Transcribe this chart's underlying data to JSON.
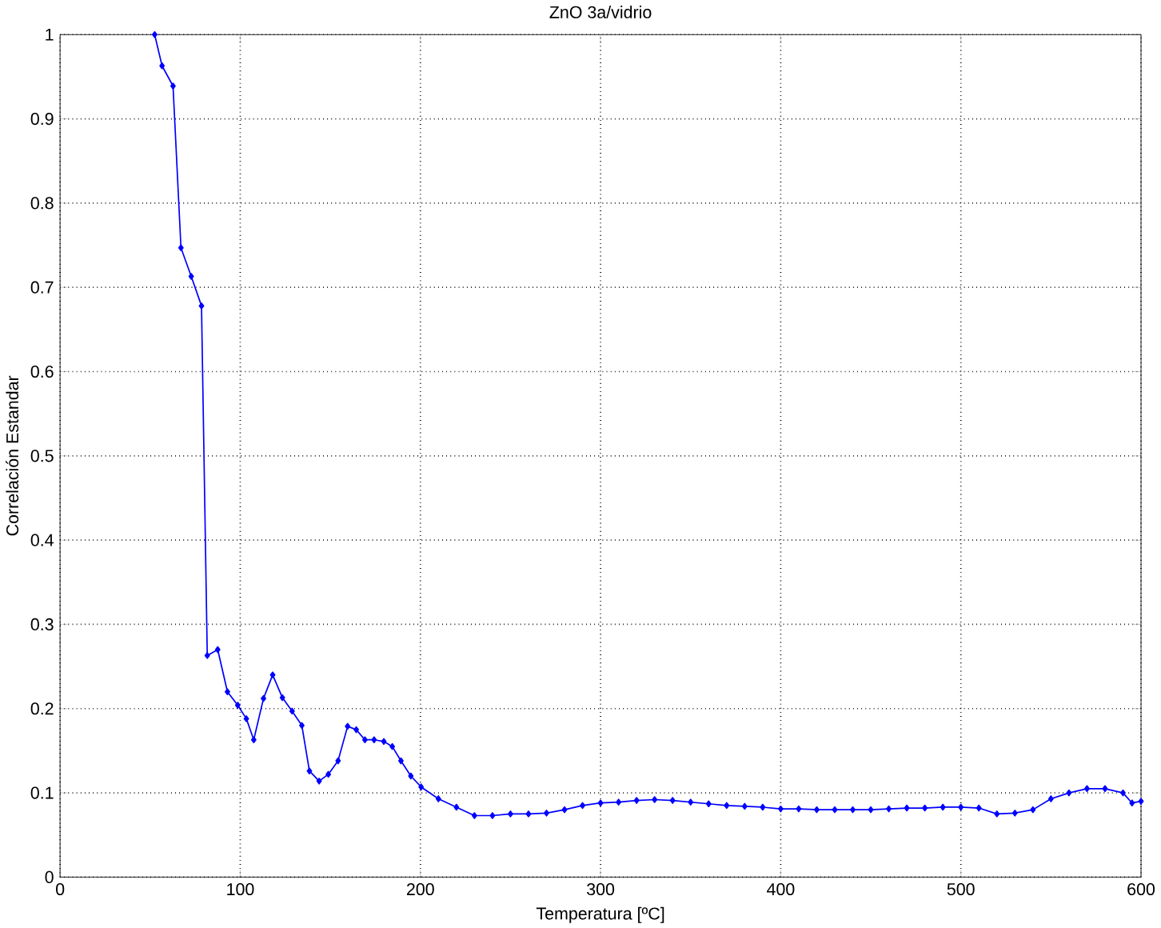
{
  "chart_data": {
    "type": "line",
    "title": "ZnO 3a/vidrio",
    "xlabel": "Temperatura [ºC]",
    "ylabel": "Correlación Estandar",
    "xlim": [
      0,
      600
    ],
    "ylim": [
      0,
      1
    ],
    "xticks": [
      0,
      100,
      200,
      300,
      400,
      500,
      600
    ],
    "yticks": [
      0,
      0.1,
      0.2,
      0.3,
      0.4,
      0.5,
      0.6,
      0.7,
      0.8,
      0.9,
      1
    ],
    "grid": true,
    "marker": "diamond",
    "line_style": "solid",
    "series": [
      {
        "color": "#0000ff",
        "x": [
          52.5,
          56.6,
          62.7,
          67.1,
          72.8,
          78.5,
          81.7,
          87.5,
          92.9,
          98.6,
          103.4,
          107.5,
          112.9,
          118,
          123.4,
          128.8,
          134.2,
          138.4,
          143.8,
          148.9,
          154.3,
          159.6,
          164.4,
          169.2,
          174.3,
          179.7,
          184.4,
          189.2,
          194.7,
          200.4,
          210,
          220,
          230,
          240,
          250,
          260,
          270,
          280,
          290,
          300,
          310,
          320,
          330,
          340,
          350,
          360,
          370,
          380,
          390,
          400,
          410,
          420,
          430,
          440,
          450,
          460,
          470,
          480,
          490,
          500,
          510,
          520,
          530,
          540,
          550,
          560,
          570,
          580,
          590,
          595,
          600
        ],
        "values": [
          1.0,
          0.963,
          0.939,
          0.747,
          0.713,
          0.678,
          0.263,
          0.27,
          0.22,
          0.204,
          0.188,
          0.163,
          0.212,
          0.24,
          0.213,
          0.197,
          0.18,
          0.126,
          0.114,
          0.122,
          0.138,
          0.179,
          0.175,
          0.163,
          0.163,
          0.161,
          0.155,
          0.138,
          0.12,
          0.107,
          0.093,
          0.083,
          0.073,
          0.073,
          0.075,
          0.075,
          0.076,
          0.08,
          0.085,
          0.088,
          0.089,
          0.091,
          0.092,
          0.091,
          0.089,
          0.087,
          0.085,
          0.084,
          0.083,
          0.081,
          0.081,
          0.08,
          0.08,
          0.08,
          0.08,
          0.081,
          0.082,
          0.082,
          0.083,
          0.083,
          0.082,
          0.075,
          0.076,
          0.08,
          0.093,
          0.1,
          0.105,
          0.105,
          0.1,
          0.088,
          0.09
        ]
      }
    ]
  }
}
